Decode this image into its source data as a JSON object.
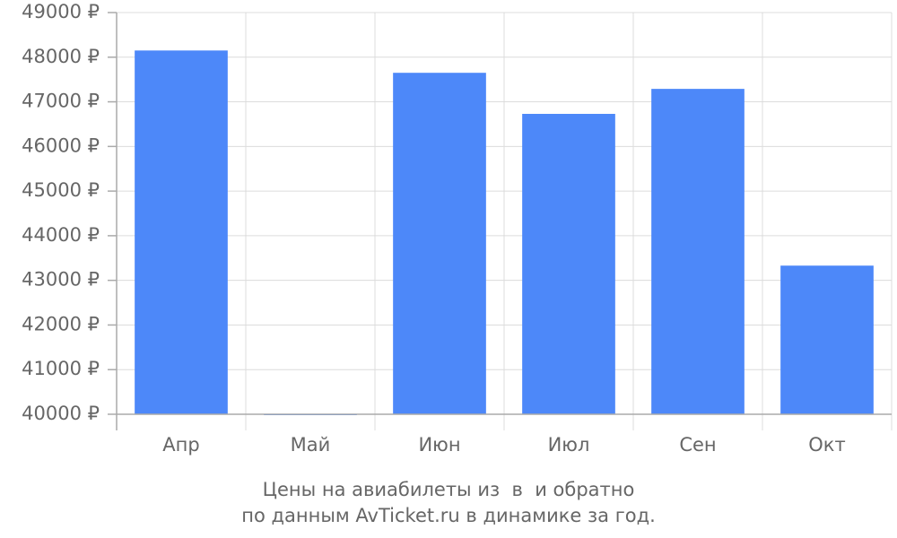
{
  "chart_data": {
    "type": "bar",
    "title": "Цены на авиабилеты из  в  и обратно",
    "subtitle": "по данным AvTicket.ru в динамике за год.",
    "categories": [
      "Апр",
      "Май",
      "Июн",
      "Июл",
      "Сен",
      "Окт"
    ],
    "values": [
      48150,
      40000,
      47650,
      46730,
      47290,
      43330
    ],
    "color": "#4d88f9",
    "ylim": [
      40000,
      49000
    ],
    "yticks": [
      {
        "value": 40000,
        "label": "40000 ₽"
      },
      {
        "value": 41000,
        "label": "41000 ₽"
      },
      {
        "value": 42000,
        "label": "42000 ₽"
      },
      {
        "value": 43000,
        "label": "43000 ₽"
      },
      {
        "value": 44000,
        "label": "44000 ₽"
      },
      {
        "value": 45000,
        "label": "45000 ₽"
      },
      {
        "value": 46000,
        "label": "46000 ₽"
      },
      {
        "value": 47000,
        "label": "47000 ₽"
      },
      {
        "value": 48000,
        "label": "48000 ₽"
      },
      {
        "value": 49000,
        "label": "49000 ₽"
      }
    ],
    "grid": true
  }
}
